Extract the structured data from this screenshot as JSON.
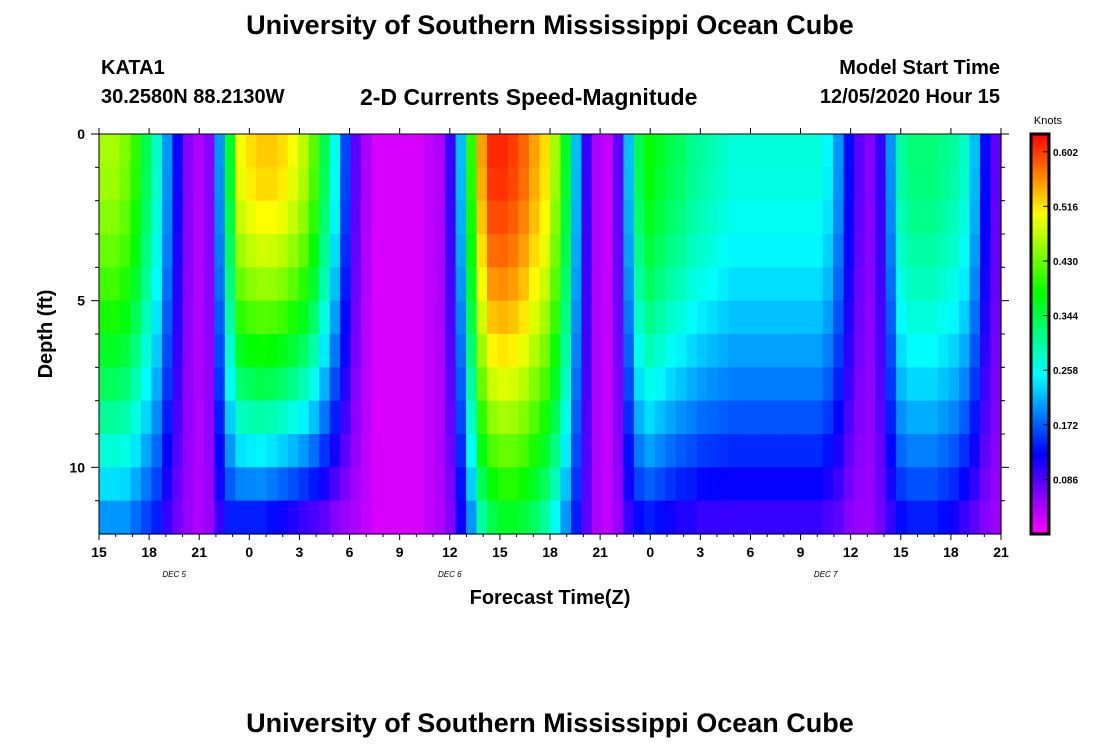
{
  "header": {
    "title": "University of Southern Mississippi Ocean Cube",
    "station_id": "KATA1",
    "coords": "30.2580N 88.2130W",
    "product": "2-D Currents Speed-Magnitude",
    "model_start_label": "Model Start Time",
    "model_start_value": "12/05/2020 Hour 15"
  },
  "footer": {
    "title": "University of Southern Mississippi Ocean Cube"
  },
  "chart_data": {
    "type": "heatmap",
    "title": "2-D Currents Speed-Magnitude",
    "xlabel": "Forecast Time(Z)",
    "ylabel": "Depth (ft)",
    "x_range_hours": [
      0,
      54
    ],
    "y_range_ft": [
      0,
      12
    ],
    "x_ticks": [
      {
        "h": 0,
        "label": "15"
      },
      {
        "h": 3,
        "label": "18"
      },
      {
        "h": 6,
        "label": "21"
      },
      {
        "h": 9,
        "label": "0"
      },
      {
        "h": 12,
        "label": "3"
      },
      {
        "h": 15,
        "label": "6"
      },
      {
        "h": 18,
        "label": "9"
      },
      {
        "h": 21,
        "label": "12"
      },
      {
        "h": 24,
        "label": "15"
      },
      {
        "h": 27,
        "label": "18"
      },
      {
        "h": 30,
        "label": "21"
      },
      {
        "h": 33,
        "label": "0"
      },
      {
        "h": 36,
        "label": "3"
      },
      {
        "h": 39,
        "label": "6"
      },
      {
        "h": 42,
        "label": "9"
      },
      {
        "h": 45,
        "label": "12"
      },
      {
        "h": 48,
        "label": "15"
      },
      {
        "h": 51,
        "label": "18"
      },
      {
        "h": 54,
        "label": "21"
      }
    ],
    "day_labels": [
      {
        "h": 4.5,
        "label": "DEC 5"
      },
      {
        "h": 21,
        "label": "DEC 6"
      },
      {
        "h": 43.5,
        "label": "DEC 7"
      }
    ],
    "y_ticks": [
      {
        "v": 0,
        "label": "0"
      },
      {
        "v": 5,
        "label": "5"
      },
      {
        "v": 10,
        "label": "10"
      }
    ],
    "colorbar": {
      "unit": "Knots",
      "min": 0.0,
      "max": 0.63,
      "ticks": [
        "0.602",
        "0.516",
        "0.430",
        "0.344",
        "0.258",
        "0.172",
        "0.086"
      ]
    },
    "surface_speed_by_column": [
      0.46,
      0.46,
      0.44,
      0.4,
      0.34,
      0.28,
      0.2,
      0.12,
      0.06,
      0.04,
      0.06,
      0.2,
      0.36,
      0.5,
      0.52,
      0.53,
      0.53,
      0.52,
      0.5,
      0.47,
      0.42,
      0.34,
      0.26,
      0.16,
      0.08,
      0.04,
      0.02,
      0.02,
      0.02,
      0.02,
      0.02,
      0.03,
      0.04,
      0.1,
      0.22,
      0.4,
      0.55,
      0.61,
      0.61,
      0.6,
      0.58,
      0.55,
      0.52,
      0.46,
      0.36,
      0.22,
      0.1,
      0.04,
      0.03,
      0.08,
      0.22,
      0.34,
      0.38,
      0.36,
      0.34,
      0.33,
      0.31,
      0.3,
      0.29,
      0.28,
      0.27,
      0.27,
      0.27,
      0.27,
      0.27,
      0.27,
      0.27,
      0.27,
      0.27,
      0.25,
      0.2,
      0.13,
      0.08,
      0.06,
      0.1,
      0.2,
      0.3,
      0.32,
      0.32,
      0.32,
      0.31,
      0.3,
      0.28,
      0.22,
      0.13,
      0.08
    ],
    "bottom_speed_by_column": [
      0.2,
      0.2,
      0.2,
      0.18,
      0.16,
      0.14,
      0.1,
      0.07,
      0.05,
      0.04,
      0.05,
      0.1,
      0.14,
      0.14,
      0.14,
      0.14,
      0.13,
      0.12,
      0.11,
      0.1,
      0.09,
      0.08,
      0.06,
      0.05,
      0.04,
      0.03,
      0.02,
      0.02,
      0.02,
      0.02,
      0.02,
      0.03,
      0.04,
      0.06,
      0.12,
      0.2,
      0.3,
      0.34,
      0.36,
      0.36,
      0.35,
      0.33,
      0.3,
      0.26,
      0.2,
      0.14,
      0.08,
      0.04,
      0.03,
      0.05,
      0.1,
      0.13,
      0.14,
      0.13,
      0.12,
      0.11,
      0.11,
      0.1,
      0.1,
      0.1,
      0.1,
      0.1,
      0.1,
      0.1,
      0.1,
      0.1,
      0.1,
      0.1,
      0.1,
      0.09,
      0.08,
      0.06,
      0.05,
      0.05,
      0.07,
      0.1,
      0.13,
      0.14,
      0.14,
      0.14,
      0.13,
      0.12,
      0.1,
      0.08,
      0.06,
      0.05
    ]
  }
}
